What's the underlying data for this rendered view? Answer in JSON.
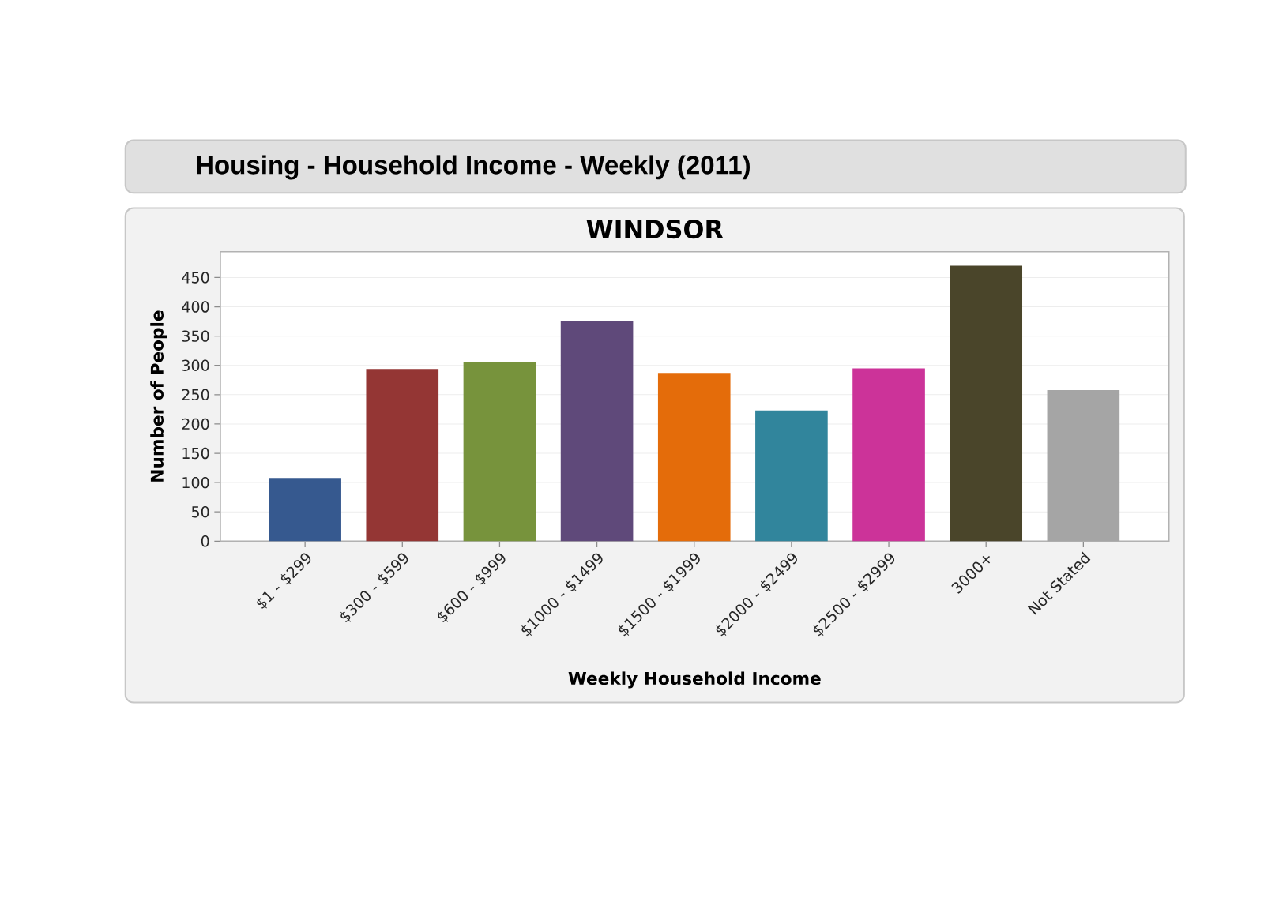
{
  "chart_data": {
    "type": "bar",
    "title": "Housing - Household Income - Weekly (2011)",
    "subtitle": "WINDSOR",
    "xlabel": "Weekly Household Income",
    "ylabel": "Number of People",
    "categories": [
      "$1 - $299",
      "$300 - $599",
      "$600 - $999",
      "$1000 - $1499",
      "$1500 - $1999",
      "$2000 - $2499",
      "$2500 - $2999",
      "3000+",
      "Not Stated"
    ],
    "values": [
      108,
      294,
      306,
      375,
      287,
      223,
      295,
      470,
      258
    ],
    "colors": [
      "#36598f",
      "#943634",
      "#77933c",
      "#5f497a",
      "#e46c0a",
      "#31859c",
      "#cc3399",
      "#4a452a",
      "#a5a5a5"
    ],
    "ylim": [
      0,
      494
    ],
    "yticks": [
      0,
      50,
      100,
      150,
      200,
      250,
      300,
      350,
      400,
      450
    ],
    "grid": "y"
  }
}
